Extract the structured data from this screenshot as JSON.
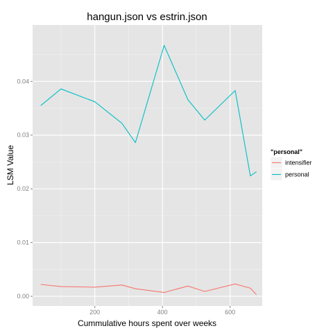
{
  "chart_data": {
    "type": "line",
    "title": "hangun.json vs estrin.json",
    "xlabel": "Cummulative hours spent over weeks",
    "ylabel": "LSM Value",
    "xlim": [
      16,
      695
    ],
    "ylim": [
      -0.0018,
      0.0505
    ],
    "x_ticks": [
      200,
      400,
      600
    ],
    "x_tick_labels": [
      "200",
      "400",
      "600"
    ],
    "y_ticks": [
      0.0,
      0.01,
      0.02,
      0.03,
      0.04
    ],
    "y_tick_labels": [
      "0.00",
      "0.01",
      "0.02",
      "0.03",
      "0.04"
    ],
    "grid": true,
    "legend_title": "\"personal\"",
    "legend_position": "right",
    "series": [
      {
        "name": "intensifier",
        "color": "#F8766D",
        "points": [
          [
            40,
            0.0022
          ],
          [
            100,
            0.0018
          ],
          [
            200,
            0.0017
          ],
          [
            280,
            0.0021
          ],
          [
            320,
            0.0014
          ],
          [
            405,
            0.0007
          ],
          [
            475,
            0.0019
          ],
          [
            525,
            0.0009
          ],
          [
            615,
            0.0023
          ],
          [
            660,
            0.0015
          ],
          [
            678,
            0.0003
          ]
        ]
      },
      {
        "name": "personal",
        "color": "#00BFC4",
        "points": [
          [
            40,
            0.0355
          ],
          [
            100,
            0.0386
          ],
          [
            200,
            0.0362
          ],
          [
            280,
            0.0322
          ],
          [
            320,
            0.0286
          ],
          [
            405,
            0.0467
          ],
          [
            475,
            0.0366
          ],
          [
            525,
            0.0328
          ],
          [
            615,
            0.0383
          ],
          [
            660,
            0.0224
          ],
          [
            678,
            0.0232
          ]
        ]
      }
    ]
  }
}
